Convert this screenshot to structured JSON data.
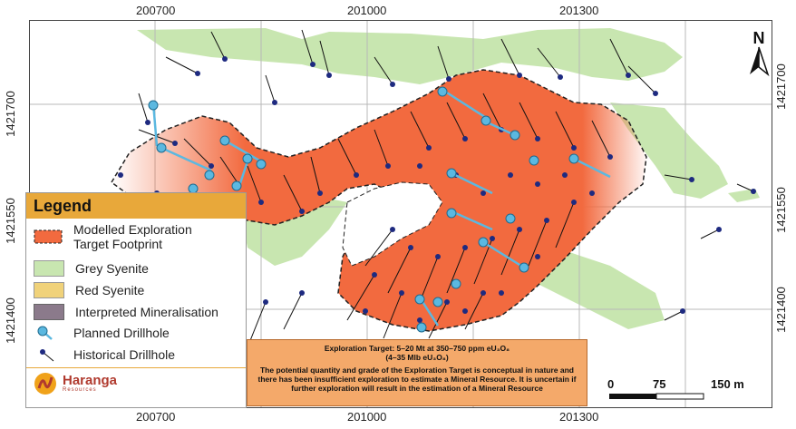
{
  "axes": {
    "x_ticks_top": [
      "200700",
      "201000",
      "201300"
    ],
    "x_ticks_bottom": [
      "200700",
      "201000",
      "201300"
    ],
    "y_ticks_left": [
      "1421700",
      "1421550",
      "1421400"
    ],
    "y_ticks_right": [
      "1421700",
      "1421550",
      "1421400"
    ]
  },
  "legend": {
    "title": "Legend",
    "items": [
      {
        "label": "Modelled Exploration Target Footprint",
        "line1": "Modelled Exploration",
        "line2": "Target Footprint",
        "color": "#f26a3f"
      },
      {
        "label": "Grey Syenite",
        "color": "#c8e6b0"
      },
      {
        "label": "Red Syenite",
        "color": "#f0d27a"
      },
      {
        "label": "Interpreted Mineralisation",
        "color": "#8b7a8b"
      },
      {
        "label": "Planned Drillhole",
        "color": "#5bb8e0"
      },
      {
        "label": "Historical Drillhole",
        "color": "#1e2a80"
      }
    ],
    "logo_name": "Haranga",
    "logo_sub": "Resources"
  },
  "note": {
    "line1": "Exploration Target: 5–20 Mt at 350–750 ppm eU₃O₈",
    "line2": "(4–35 Mlb eU₃O₈)",
    "body": "The potential quantity and grade of the Exploration Target is conceptual in nature and there has been insufficient exploration to estimate a Mineral Resource. It is uncertain if further exploration will result in the estimation of a Mineral Resource"
  },
  "scale": {
    "labels": [
      "0",
      "75",
      "150 m"
    ]
  },
  "north": {
    "label": "N"
  },
  "colors": {
    "footprint": "#f26a3f",
    "grey_syenite": "#c8e6b0",
    "historical": "#1e2a80",
    "planned": "#5bb8e0"
  }
}
